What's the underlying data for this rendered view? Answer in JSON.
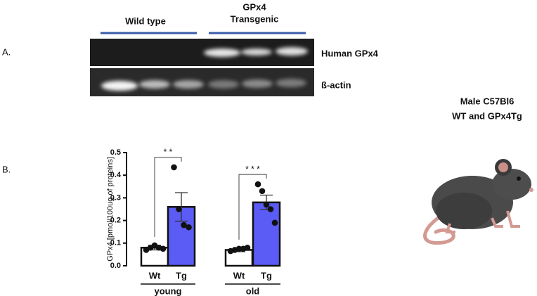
{
  "figure": {
    "panel_a": {
      "label": "A.",
      "groups": [
        {
          "lines": [
            "Wild type"
          ]
        },
        {
          "lines": [
            "GPx4",
            "Transgenic"
          ]
        }
      ],
      "rows": [
        "Human GPx4",
        "ß-actin"
      ]
    },
    "panel_b": {
      "label": "B."
    },
    "side": {
      "lines": [
        "Male C57Bl6",
        "WT and GPx4Tg"
      ]
    }
  },
  "chart_data": {
    "type": "bar",
    "ylabel": "GPx4 [pmol/100ug of proteins]",
    "categories": [
      "Wt",
      "Tg",
      "Wt",
      "Tg"
    ],
    "groups": [
      "young",
      "old"
    ],
    "values": [
      0.08,
      0.26,
      0.07,
      0.28
    ],
    "errors": [
      0.01,
      0.063,
      0.008,
      0.032
    ],
    "colors": [
      "#ffffff",
      "#5b5bf5",
      "#ffffff",
      "#5b5bf5"
    ],
    "points": [
      [
        0.07,
        0.08,
        0.09,
        0.08,
        0.075
      ],
      [
        0.435,
        0.25,
        0.18,
        0.17
      ],
      [
        0.065,
        0.07,
        0.075,
        0.075,
        0.08
      ],
      [
        0.36,
        0.33,
        0.27,
        0.25,
        0.19
      ]
    ],
    "significance": [
      "* *",
      "* * *"
    ],
    "ylim": [
      0,
      0.5
    ],
    "yticks": [
      {
        "value": 0,
        "label": "0.0"
      },
      0.1,
      0.2,
      0.3,
      0.4,
      0.5
    ]
  }
}
